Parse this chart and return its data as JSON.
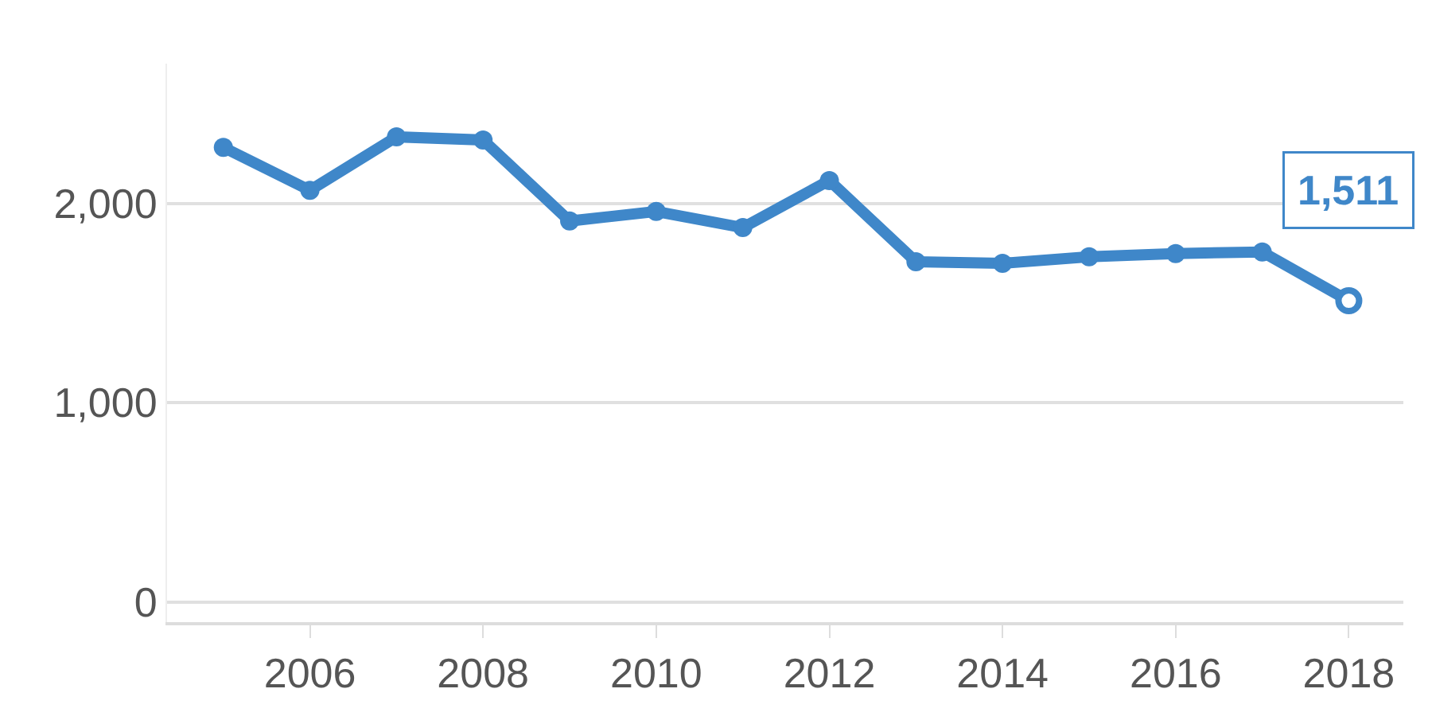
{
  "chart_data": {
    "type": "line",
    "x": [
      2005,
      2006,
      2007,
      2008,
      2009,
      2010,
      2011,
      2012,
      2013,
      2014,
      2015,
      2016,
      2017,
      2018
    ],
    "series": [
      {
        "color": "#3f87c9",
        "values": [
          2280,
          2065,
          2333,
          2317,
          1911,
          1959,
          1878,
          2114,
          1707,
          1699,
          1732,
          1748,
          1756,
          1511
        ]
      }
    ],
    "xlim": [
      2004.35,
      2018.63
    ],
    "xticks": [
      2006,
      2008,
      2010,
      2012,
      2014,
      2016,
      2018
    ],
    "ylim": [
      -100,
      2700
    ],
    "yticks": [
      {
        "value": 0,
        "label": "0"
      },
      {
        "value": 1000,
        "label": "1,000"
      },
      {
        "value": 2000,
        "label": "2,000"
      }
    ],
    "annotations": [
      {
        "text": "1,511",
        "x": 2018,
        "y": 1511
      }
    ],
    "grid": "y",
    "marker": "circle",
    "line_style": "solid",
    "legend": false
  }
}
